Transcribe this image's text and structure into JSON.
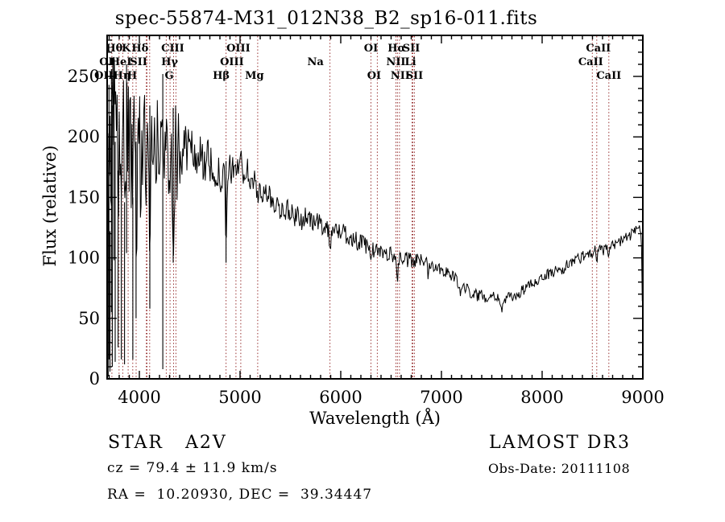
{
  "title": "spec-55874-M31_012N38_B2_sp16-011.fits",
  "annotations": {
    "object_type": "STAR   A2V",
    "survey": "LAMOST DR3",
    "cz": "cz = 79.4 ± 11.9 km/s",
    "obs_date": "Obs-Date: 20111108",
    "coords": "RA =  10.20930, DEC =  39.34447"
  },
  "colors": {
    "spectrum": "#000000",
    "line_marker": "#993333",
    "axis": "#000000",
    "background": "#ffffff"
  },
  "chart_data": {
    "type": "line",
    "title": "spec-55874-M31_012N38_B2_sp16-011.fits",
    "xlabel": "Wavelength (Å)",
    "ylabel": "Flux (relative)",
    "xlim": [
      3680,
      9000
    ],
    "ylim": [
      0,
      284
    ],
    "xticks": [
      4000,
      5000,
      6000,
      7000,
      8000,
      9000
    ],
    "yticks": [
      0,
      50,
      100,
      150,
      200,
      250
    ],
    "x_minor_step": 100,
    "y_minor_step": 10,
    "grid": false,
    "legend": "none",
    "continuum": [
      [
        3688,
        60
      ],
      [
        3700,
        170
      ],
      [
        3720,
        180
      ],
      [
        3750,
        188
      ],
      [
        3800,
        188
      ],
      [
        3850,
        190
      ],
      [
        3900,
        186
      ],
      [
        3950,
        183
      ],
      [
        4000,
        186
      ],
      [
        4060,
        186
      ],
      [
        4120,
        188
      ],
      [
        4180,
        192
      ],
      [
        4240,
        190
      ],
      [
        4300,
        191
      ],
      [
        4360,
        188
      ],
      [
        4420,
        190
      ],
      [
        4480,
        191
      ],
      [
        4540,
        187
      ],
      [
        4600,
        184
      ],
      [
        4660,
        180
      ],
      [
        4720,
        174
      ],
      [
        4780,
        170
      ],
      [
        4830,
        165
      ],
      [
        4880,
        169
      ],
      [
        4940,
        176
      ],
      [
        5000,
        177
      ],
      [
        5060,
        170
      ],
      [
        5120,
        165
      ],
      [
        5180,
        161
      ],
      [
        5240,
        154
      ],
      [
        5300,
        149
      ],
      [
        5360,
        144
      ],
      [
        5420,
        141
      ],
      [
        5500,
        137
      ],
      [
        5600,
        133
      ],
      [
        5700,
        131
      ],
      [
        5800,
        128
      ],
      [
        5900,
        123
      ],
      [
        6000,
        122
      ],
      [
        6100,
        117
      ],
      [
        6200,
        112
      ],
      [
        6300,
        107
      ],
      [
        6400,
        105
      ],
      [
        6500,
        103
      ],
      [
        6600,
        100
      ],
      [
        6700,
        97
      ],
      [
        6800,
        98
      ],
      [
        6870,
        99
      ],
      [
        6940,
        93
      ],
      [
        7000,
        91
      ],
      [
        7060,
        88
      ],
      [
        7120,
        84
      ],
      [
        7200,
        78
      ],
      [
        7280,
        72
      ],
      [
        7360,
        69
      ],
      [
        7440,
        68
      ],
      [
        7520,
        70
      ],
      [
        7600,
        66
      ],
      [
        7680,
        67
      ],
      [
        7760,
        70
      ],
      [
        7840,
        75
      ],
      [
        7920,
        80
      ],
      [
        8000,
        84
      ],
      [
        8100,
        88
      ],
      [
        8200,
        92
      ],
      [
        8300,
        97
      ],
      [
        8400,
        101
      ],
      [
        8500,
        106
      ],
      [
        8560,
        108
      ],
      [
        8620,
        106
      ],
      [
        8700,
        110
      ],
      [
        8780,
        114
      ],
      [
        8860,
        118
      ],
      [
        8920,
        121
      ],
      [
        8960,
        124
      ],
      [
        8985,
        118
      ],
      [
        8995,
        60
      ],
      [
        9000,
        5
      ]
    ],
    "absorption_features": [
      [
        3934,
        50,
        6
      ],
      [
        3968,
        40,
        6
      ],
      [
        4102,
        55,
        7
      ],
      [
        4340,
        60,
        7
      ],
      [
        4861,
        62,
        7
      ],
      [
        5175,
        16,
        10
      ],
      [
        5893,
        16,
        6
      ],
      [
        6300,
        10,
        5
      ],
      [
        6563,
        22,
        7
      ],
      [
        6870,
        12,
        8
      ],
      [
        7185,
        8,
        10
      ],
      [
        7600,
        10,
        12
      ],
      [
        8210,
        6,
        8
      ],
      [
        8498,
        8,
        5
      ],
      [
        8542,
        10,
        5
      ],
      [
        8662,
        10,
        5
      ]
    ],
    "noise_segments": [
      [
        3688,
        3770,
        80
      ],
      [
        3770,
        4070,
        58
      ],
      [
        4070,
        4430,
        42
      ],
      [
        4430,
        4720,
        20
      ],
      [
        4720,
        5150,
        14
      ],
      [
        5150,
        5650,
        10
      ],
      [
        5650,
        6250,
        8
      ],
      [
        6250,
        6950,
        6.5
      ],
      [
        6950,
        7650,
        5
      ],
      [
        7650,
        9001,
        4.5
      ]
    ],
    "spikes": [
      [
        3690,
        2,
        132
      ],
      [
        3698,
        16,
        243
      ],
      [
        3708,
        6,
        122
      ],
      [
        3722,
        55,
        256
      ],
      [
        3731,
        10,
        226
      ],
      [
        3748,
        98,
        266
      ],
      [
        3760,
        14,
        196
      ],
      [
        3789,
        26,
        172
      ],
      [
        3821,
        16,
        158
      ],
      [
        3853,
        12,
        146
      ],
      [
        3873,
        104,
        260
      ],
      [
        3935,
        16,
        150
      ],
      [
        3967,
        50,
        196
      ],
      [
        4104,
        58,
        226
      ],
      [
        4233,
        8,
        252
      ],
      [
        4336,
        96,
        224
      ],
      [
        4861,
        96,
        180
      ],
      [
        9000,
        2,
        108
      ]
    ],
    "line_markers": [
      3727,
      3798,
      3835,
      3889,
      3934,
      3968,
      4069,
      4076,
      4102,
      4267,
      4305,
      4340,
      4363,
      4861,
      4959,
      5007,
      5175,
      5893,
      6300,
      6363,
      6548,
      6563,
      6583,
      6708,
      6716,
      6731,
      8498,
      8542,
      8662
    ],
    "line_labels": [
      {
        "label": "Hθ",
        "row": 1,
        "wl": 3798,
        "dx": -6
      },
      {
        "label": "K",
        "row": 1,
        "wl": 3934,
        "dx": -8
      },
      {
        "label": "Hδ",
        "row": 1,
        "wl": 4102,
        "dx": -12
      },
      {
        "label": "CIII",
        "row": 1,
        "wl": 4267,
        "dx": 8
      },
      {
        "label": "OIII",
        "row": 1,
        "wl": 5007,
        "dx": -3
      },
      {
        "label": "OI",
        "row": 1,
        "wl": 6300,
        "dx": 0
      },
      {
        "label": "Hα",
        "row": 1,
        "wl": 6563,
        "dx": -1
      },
      {
        "label": "SII",
        "row": 1,
        "wl": 6724,
        "dx": -3
      },
      {
        "label": "CaII",
        "row": 1,
        "wl": 8542,
        "dx": 2
      },
      {
        "label": "OI",
        "row": 2,
        "wl": 3727,
        "dx": -7
      },
      {
        "label": "HeI",
        "row": 2,
        "wl": 3889,
        "dx": -9
      },
      {
        "label": "SII",
        "row": 2,
        "wl": 4072,
        "dx": -10
      },
      {
        "label": "Hγ",
        "row": 2,
        "wl": 4340,
        "dx": -5
      },
      {
        "label": "OIII",
        "row": 2,
        "wl": 4959,
        "dx": -5
      },
      {
        "label": "Na",
        "row": 2,
        "wl": 5893,
        "dx": -18
      },
      {
        "label": "NII",
        "row": 2,
        "wl": 6548,
        "dx": 0
      },
      {
        "label": "Li",
        "row": 2,
        "wl": 6708,
        "dx": -2
      },
      {
        "label": "CaII",
        "row": 2,
        "wl": 8498,
        "dx": -2
      },
      {
        "label": "OII",
        "row": 3,
        "wl": 3727,
        "dx": -10
      },
      {
        "label": "Hη",
        "row": 3,
        "wl": 3835,
        "dx": -1
      },
      {
        "label": "H",
        "row": 3,
        "wl": 3968,
        "dx": -5
      },
      {
        "label": "G",
        "row": 3,
        "wl": 4305,
        "dx": -1
      },
      {
        "label": "Hβ",
        "row": 3,
        "wl": 4861,
        "dx": -6
      },
      {
        "label": "Mg",
        "row": 3,
        "wl": 5175,
        "dx": -4
      },
      {
        "label": "OI",
        "row": 3,
        "wl": 6363,
        "dx": -4
      },
      {
        "label": "NII",
        "row": 3,
        "wl": 6583,
        "dx": 1
      },
      {
        "label": "SII",
        "row": 3,
        "wl": 6731,
        "dx": 0
      },
      {
        "label": "CaII",
        "row": 3,
        "wl": 8662,
        "dx": 0
      }
    ]
  }
}
